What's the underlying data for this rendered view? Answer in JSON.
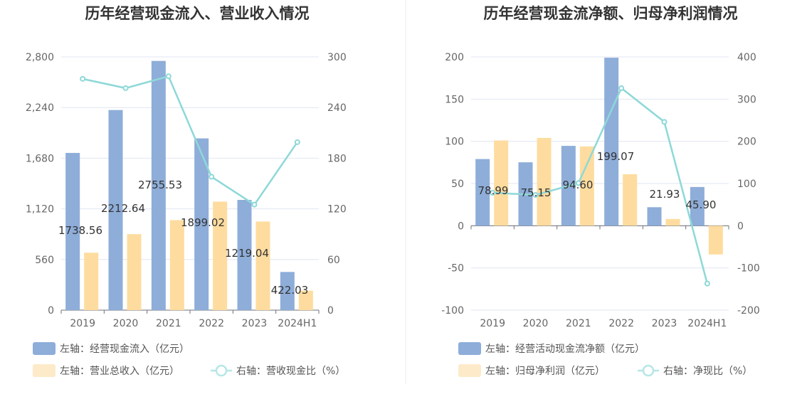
{
  "chart_data": [
    {
      "type": "bar",
      "title": "历年经营现金流入、营业收入情况",
      "categories": [
        "2019",
        "2020",
        "2021",
        "2022",
        "2023",
        "2024H1"
      ],
      "left_axis": {
        "ticks": [
          "0",
          "560",
          "1,120",
          "1,680",
          "2,240",
          "2,800"
        ],
        "ylim": [
          0,
          2800
        ]
      },
      "right_axis": {
        "ticks": [
          "0",
          "60",
          "120",
          "180",
          "240",
          "300"
        ],
        "ylim": [
          0,
          300
        ]
      },
      "series": [
        {
          "name": "左轴：经营现金流入（亿元）",
          "kind": "bar",
          "axis": "left",
          "color": "#8eadd9",
          "values": [
            1738.56,
            2212.64,
            2755.53,
            1899.02,
            1219.04,
            422.03
          ],
          "labels": [
            "1738.56",
            "2212.64",
            "2755.53",
            "1899.02",
            "1219.04",
            "422.03"
          ]
        },
        {
          "name": "左轴：营业总收入（亿元）",
          "kind": "bar",
          "axis": "left",
          "color": "#fedc9f",
          "values": [
            635,
            840,
            995,
            1200,
            980,
            215
          ]
        },
        {
          "name": "右轴：营收现金比（%）",
          "kind": "line",
          "axis": "right",
          "color": "#8ed8d8",
          "values": [
            274,
            263,
            277,
            158,
            125,
            199
          ]
        }
      ],
      "legend": "bottom"
    },
    {
      "type": "bar",
      "title": "历年经营现金流净额、归母净利润情况",
      "categories": [
        "2019",
        "2020",
        "2021",
        "2022",
        "2023",
        "2024H1"
      ],
      "left_axis": {
        "ticks": [
          "-100",
          "-50",
          "0",
          "50",
          "100",
          "150",
          "200"
        ],
        "ylim": [
          -100,
          200
        ]
      },
      "right_axis": {
        "ticks": [
          "-200",
          "-100",
          "0",
          "100",
          "200",
          "300",
          "400"
        ],
        "ylim": [
          -200,
          400
        ]
      },
      "series": [
        {
          "name": "左轴：经营活动现金流净额（亿元）",
          "kind": "bar",
          "axis": "left",
          "color": "#8eadd9",
          "values": [
            78.99,
            75.15,
            94.6,
            199.07,
            21.93,
            45.9
          ],
          "labels": [
            "78.99",
            "75.15",
            "94.60",
            "199.07",
            "21.93",
            "45.90"
          ]
        },
        {
          "name": "左轴：归母净利润（亿元）",
          "kind": "bar",
          "axis": "left",
          "color": "#fedc9f",
          "values": [
            101,
            104,
            94,
            61,
            8,
            -34
          ]
        },
        {
          "name": "右轴：净现比（%）",
          "kind": "line",
          "axis": "right",
          "color": "#8ed8d8",
          "values": [
            78,
            73,
            101,
            326,
            246,
            -137
          ]
        }
      ],
      "legend": "bottom"
    }
  ]
}
